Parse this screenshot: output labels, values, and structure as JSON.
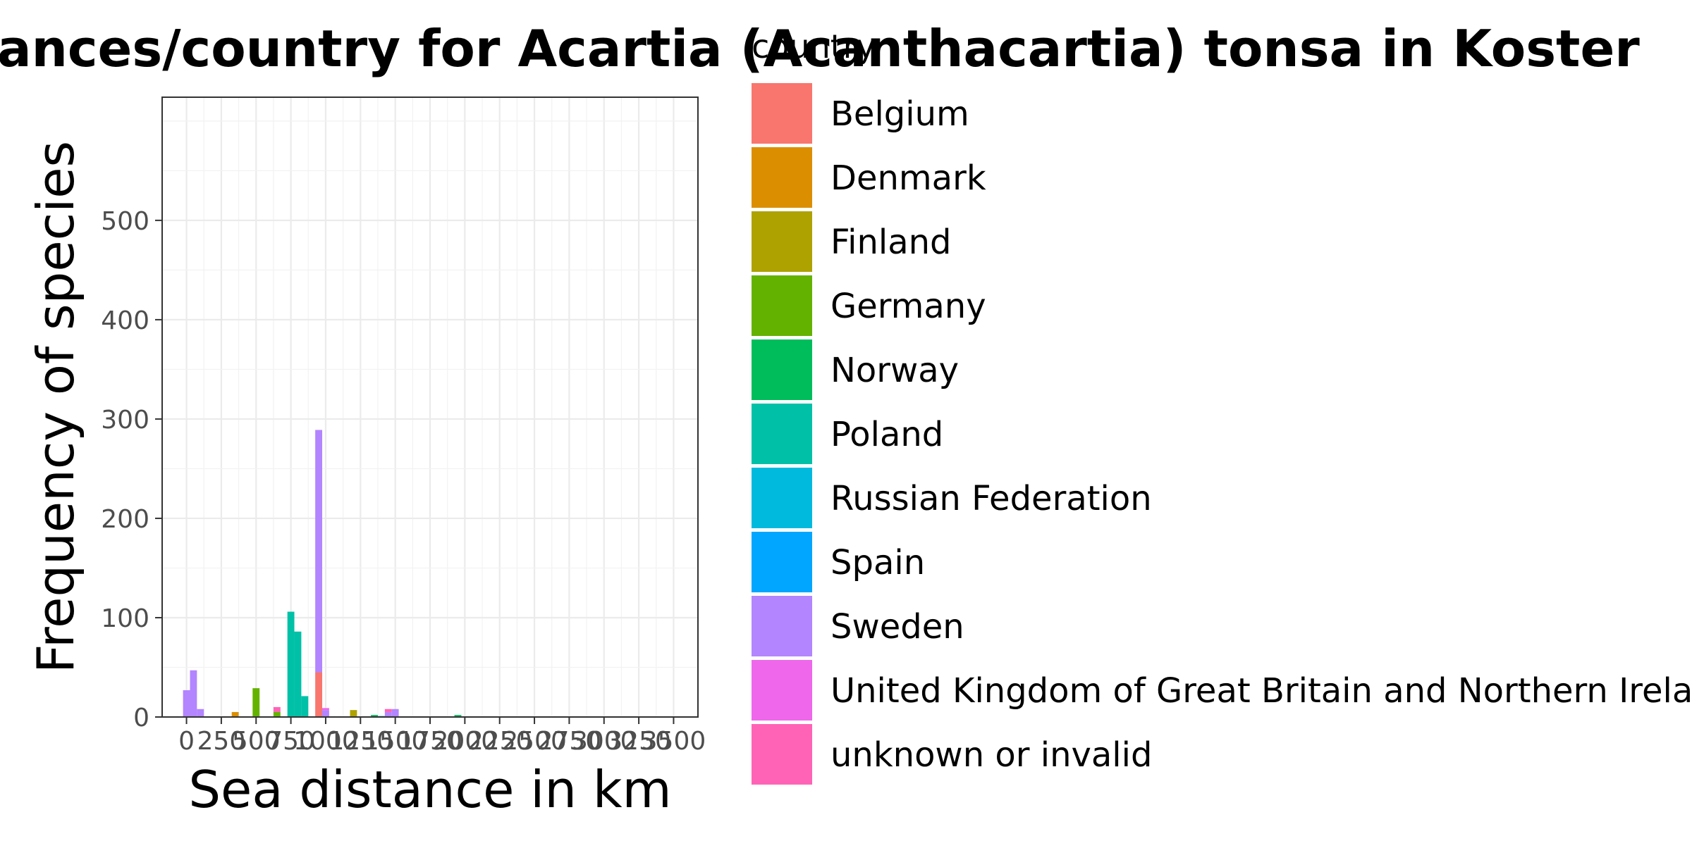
{
  "chart_data": {
    "type": "bar",
    "stacked": true,
    "title": "ances/country for Acartia (Acanthacartia) tonsa in Koster",
    "xlabel": "Sea distance in km",
    "ylabel": "Frequency of species",
    "xlim": [
      0,
      3500
    ],
    "ylim": [
      0,
      600
    ],
    "bin_width": 50,
    "x_ticks": [
      0,
      250,
      500,
      750,
      1000,
      1250,
      1500,
      1750,
      2000,
      2250,
      2500,
      2750,
      3000,
      3250,
      3500
    ],
    "y_ticks": [
      0,
      100,
      200,
      300,
      400,
      500
    ],
    "grid": true,
    "legend_title": "country",
    "legend_position": "right",
    "series": [
      {
        "name": "Belgium",
        "color": "#F8766D",
        "data": [
          [
            950,
            45
          ]
        ]
      },
      {
        "name": "Denmark",
        "color": "#DB8E00",
        "data": [
          [
            350,
            5
          ]
        ]
      },
      {
        "name": "Finland",
        "color": "#AEA200",
        "data": [
          [
            1200,
            7
          ]
        ]
      },
      {
        "name": "Germany",
        "color": "#64B200",
        "data": [
          [
            500,
            29
          ],
          [
            650,
            5
          ]
        ]
      },
      {
        "name": "Norway",
        "color": "#00BD5C",
        "data": [
          [
            1350,
            2
          ],
          [
            1950,
            2
          ]
        ]
      },
      {
        "name": "Poland",
        "color": "#00C1A7",
        "data": [
          [
            750,
            106
          ],
          [
            800,
            86
          ],
          [
            850,
            21
          ]
        ]
      },
      {
        "name": "Russian Federation",
        "color": "#00BADE",
        "data": [
          [
            1400,
            1
          ]
        ]
      },
      {
        "name": "Spain",
        "color": "#00A6FF",
        "data": []
      },
      {
        "name": "Sweden",
        "color": "#B385FF",
        "data": [
          [
            0,
            27
          ],
          [
            50,
            47
          ],
          [
            100,
            8
          ],
          [
            950,
            244
          ],
          [
            1000,
            7
          ],
          [
            1450,
            5
          ],
          [
            1500,
            8
          ]
        ]
      },
      {
        "name": "United Kingdom of Great Britain and Northern Ireland",
        "color": "#EF67EB",
        "data": [
          [
            1000,
            2
          ]
        ]
      },
      {
        "name": "unknown or invalid",
        "color": "#FF63B6",
        "data": [
          [
            650,
            5
          ],
          [
            1450,
            3
          ]
        ]
      }
    ]
  }
}
